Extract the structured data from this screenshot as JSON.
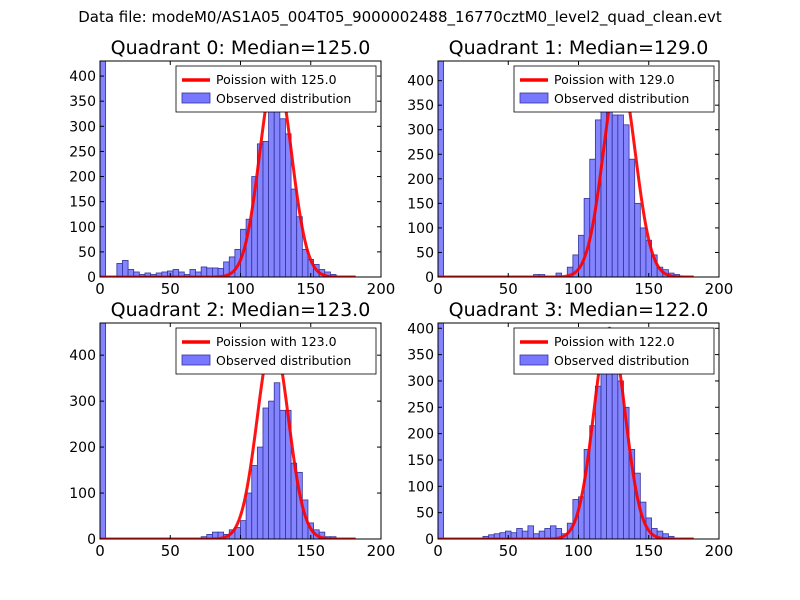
{
  "suptitle": "Data file: modeM0/AS1A05_004T05_9000002488_16770cztM0_level2_quad_clean.evt",
  "colors": {
    "poisson": "#ff0000",
    "bars_fill": "#7777ff",
    "bars_edge": "#33339a"
  },
  "chart_data": [
    {
      "type": "bar",
      "title": "Quadrant 0: Median=125.0",
      "xlim": [
        0,
        200
      ],
      "ylim": [
        0,
        430
      ],
      "xticks": [
        0,
        50,
        100,
        150,
        200
      ],
      "yticks": [
        0,
        50,
        100,
        150,
        200,
        250,
        300,
        350,
        400
      ],
      "legend": {
        "location": "top-right",
        "entries": [
          "Poission with 125.0",
          "Observed distribution"
        ]
      },
      "bin_width": 4,
      "bin_starts": [
        0,
        12,
        16,
        20,
        24,
        28,
        32,
        36,
        40,
        44,
        48,
        52,
        56,
        60,
        64,
        68,
        72,
        76,
        80,
        84,
        88,
        92,
        96,
        100,
        104,
        108,
        112,
        116,
        120,
        124,
        128,
        132,
        136,
        140,
        144,
        148,
        152,
        156,
        160,
        164
      ],
      "counts": [
        430,
        27,
        33,
        15,
        10,
        5,
        8,
        5,
        8,
        10,
        12,
        15,
        10,
        5,
        15,
        10,
        20,
        18,
        18,
        17,
        30,
        40,
        55,
        95,
        115,
        200,
        265,
        270,
        330,
        350,
        315,
        285,
        175,
        120,
        55,
        35,
        25,
        15,
        10,
        5
      ],
      "poisson_mean": 125.0,
      "poisson_peak": 412
    },
    {
      "type": "bar",
      "title": "Quadrant 1: Median=129.0",
      "xlim": [
        0,
        200
      ],
      "ylim": [
        0,
        440
      ],
      "xticks": [
        0,
        50,
        100,
        150,
        200
      ],
      "yticks": [
        0,
        50,
        100,
        150,
        200,
        250,
        300,
        350,
        400
      ],
      "legend": {
        "location": "top-right",
        "entries": [
          "Poission with 129.0",
          "Observed distribution"
        ]
      },
      "bin_width": 4,
      "bin_starts": [
        0,
        68,
        72,
        84,
        92,
        96,
        100,
        104,
        108,
        112,
        116,
        120,
        124,
        128,
        132,
        136,
        140,
        144,
        148,
        152,
        156,
        160,
        164,
        168
      ],
      "counts": [
        440,
        5,
        5,
        8,
        20,
        45,
        85,
        160,
        240,
        320,
        370,
        350,
        330,
        330,
        310,
        240,
        150,
        100,
        75,
        45,
        20,
        15,
        8,
        5
      ],
      "poisson_mean": 129.0,
      "poisson_peak": 420
    },
    {
      "type": "bar",
      "title": "Quadrant 2: Median=123.0",
      "xlim": [
        0,
        200
      ],
      "ylim": [
        0,
        470
      ],
      "xticks": [
        0,
        50,
        100,
        150,
        200
      ],
      "yticks": [
        0,
        100,
        200,
        300,
        400
      ],
      "legend": {
        "location": "top-right",
        "entries": [
          "Poission with 123.0",
          "Observed distribution"
        ]
      },
      "bin_width": 4,
      "bin_starts": [
        0,
        72,
        76,
        80,
        84,
        88,
        92,
        96,
        100,
        104,
        108,
        112,
        116,
        120,
        124,
        128,
        132,
        136,
        140,
        144,
        148,
        152,
        156,
        160,
        164
      ],
      "counts": [
        470,
        5,
        10,
        15,
        15,
        10,
        20,
        25,
        40,
        100,
        160,
        200,
        285,
        300,
        340,
        280,
        280,
        165,
        145,
        85,
        35,
        20,
        15,
        5,
        5
      ],
      "poisson_mean": 123.0,
      "poisson_peak": 435
    },
    {
      "type": "bar",
      "title": "Quadrant 3: Median=122.0",
      "xlim": [
        0,
        200
      ],
      "ylim": [
        0,
        410
      ],
      "xticks": [
        0,
        50,
        100,
        150,
        200
      ],
      "yticks": [
        0,
        50,
        100,
        150,
        200,
        250,
        300,
        350,
        400
      ],
      "legend": {
        "location": "top-right",
        "entries": [
          "Poission with 122.0",
          "Observed distribution"
        ]
      },
      "bin_width": 4,
      "bin_starts": [
        0,
        32,
        36,
        40,
        44,
        48,
        52,
        56,
        60,
        64,
        68,
        72,
        76,
        80,
        84,
        88,
        92,
        96,
        100,
        104,
        108,
        112,
        116,
        120,
        124,
        128,
        132,
        136,
        140,
        144,
        148,
        152,
        156,
        160,
        164
      ],
      "counts": [
        410,
        5,
        8,
        10,
        12,
        15,
        12,
        20,
        15,
        25,
        10,
        15,
        20,
        25,
        20,
        10,
        30,
        75,
        80,
        170,
        215,
        290,
        360,
        390,
        375,
        300,
        250,
        170,
        125,
        70,
        40,
        20,
        15,
        10,
        5
      ],
      "poisson_mean": 122.0,
      "poisson_peak": 400
    }
  ]
}
